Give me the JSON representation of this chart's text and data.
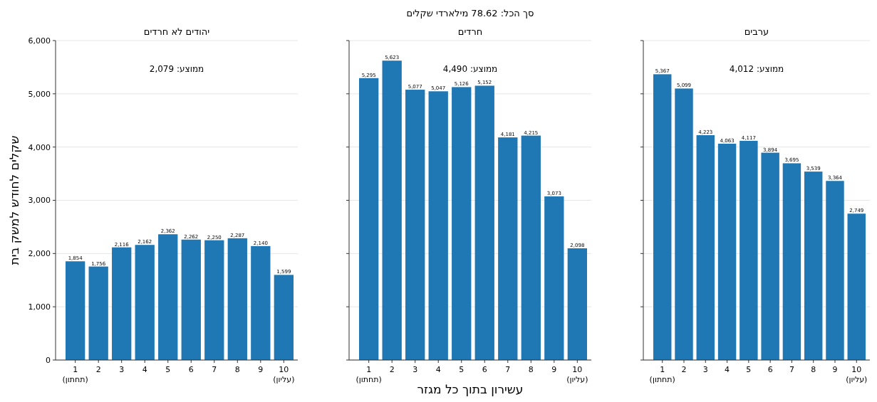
{
  "chart_data": [
    {
      "type": "bar",
      "title": "יהודים לא חרדים",
      "ylabel": "שקלים לחודש למשק בית",
      "categories": [
        "1\n(תחתון)",
        "2",
        "3",
        "4",
        "5",
        "6",
        "7",
        "8",
        "9",
        "10\n(עליון)"
      ],
      "values": [
        1854,
        1756,
        2116,
        2162,
        2362,
        2262,
        2250,
        2287,
        2140,
        1599
      ],
      "value_labels": [
        "1,854",
        "1,756",
        "2,116",
        "2,162",
        "2,362",
        "2,262",
        "2,250",
        "2,287",
        "2,140",
        "1,599"
      ],
      "color": "#1f77b4",
      "ylim": [
        0,
        6000
      ],
      "yticks": [
        0,
        {
          "value": 1000,
          "label": "1,000"
        },
        {
          "value": 2000,
          "label": "2,000"
        },
        {
          "value": 3000,
          "label": "3,000"
        },
        {
          "value": 4000,
          "label": "4,000"
        },
        {
          "value": 5000,
          "label": "5,000"
        },
        {
          "value": 6000,
          "label": "6,000"
        }
      ],
      "grid": "y",
      "annotations": [
        "ממוצע: 2,079"
      ]
    },
    {
      "type": "bar",
      "title": "חרדים",
      "xlabel": "עשירון בתוך כל מגזר",
      "categories": [
        "1\n(תחתון)",
        "2",
        "3",
        "4",
        "5",
        "6",
        "7",
        "8",
        "9",
        "10\n(עליון)"
      ],
      "values": [
        5295,
        5623,
        5077,
        5047,
        5126,
        5152,
        4181,
        4215,
        3073,
        2098
      ],
      "value_labels": [
        "5,295",
        "5,623",
        "5,077",
        "5,047",
        "5,126",
        "5,152",
        "4,181",
        "4,215",
        "3,073",
        "2,098"
      ],
      "color": "#1f77b4",
      "ylim": [
        0,
        6000
      ],
      "yticks": [
        0,
        1000,
        2000,
        3000,
        4000,
        5000,
        6000
      ],
      "grid": "y",
      "tick_labels": "x",
      "annotations": [
        "סך הכל: 78.62 מילארדי שקלים",
        "ממוצע: 4,490"
      ]
    },
    {
      "type": "bar",
      "title": "ערבים",
      "categories": [
        "1\n(תחתון)",
        "2",
        "3",
        "4",
        "5",
        "6",
        "7",
        "8",
        "9",
        "10\n(עליון)"
      ],
      "values": [
        5367,
        5099,
        4223,
        4063,
        4117,
        3894,
        3695,
        3539,
        3364,
        2749
      ],
      "value_labels": [
        "5,367",
        "5,099",
        "4,223",
        "4,063",
        "4,117",
        "3,894",
        "3,695",
        "3,539",
        "3,364",
        "2,749"
      ],
      "color": "#1f77b4",
      "ylim": [
        0,
        6000
      ],
      "yticks": [
        0,
        1000,
        2000,
        3000,
        4000,
        5000,
        6000
      ],
      "grid": "y",
      "tick_labels": "x",
      "annotations": [
        "ממוצע: 4,012"
      ]
    }
  ]
}
